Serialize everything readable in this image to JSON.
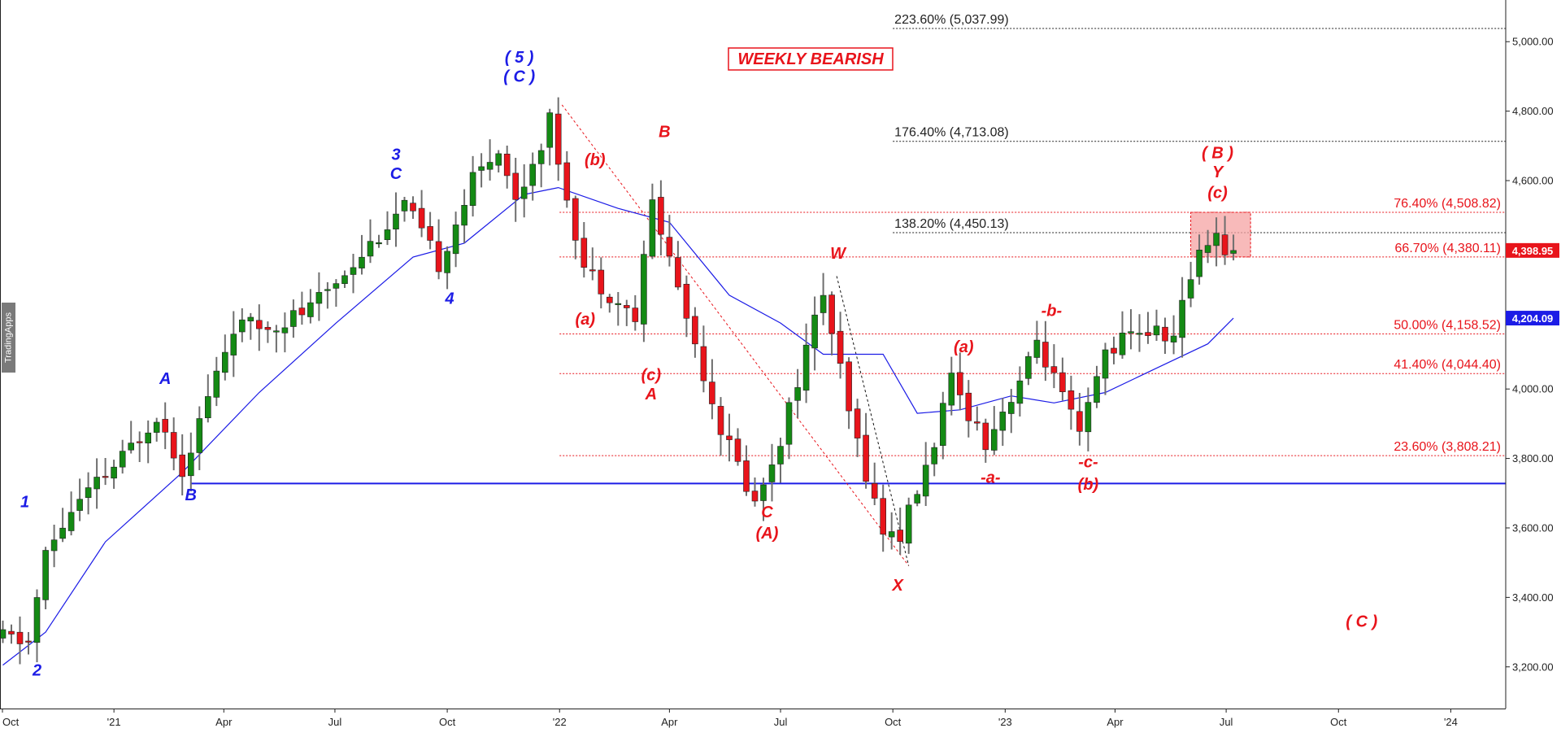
{
  "watermark": "TradingApps",
  "chart_data": {
    "type": "candlestick",
    "title": "WEEKLY BEARISH",
    "ylim": [
      3080,
      5120
    ],
    "y_ticks": [
      3200,
      3400,
      3600,
      3800,
      4000,
      4200,
      4400,
      4600,
      4800,
      5000
    ],
    "y_tick_labels": [
      "3,200.00",
      "3,400.00",
      "3,600.00",
      "3,800.00",
      "4,000.00",
      "4,200.00",
      "4,400.00",
      "4,600.00",
      "4,800.00",
      "5,000.00"
    ],
    "x_start": "2020-10-01",
    "x_end": "2024-02-15",
    "x_ticks": [
      {
        "date": "2020-10-01",
        "label": "Oct"
      },
      {
        "date": "2021-01-01",
        "label": "'21"
      },
      {
        "date": "2021-04-01",
        "label": "Apr"
      },
      {
        "date": "2021-07-01",
        "label": "Jul"
      },
      {
        "date": "2021-10-01",
        "label": "Oct"
      },
      {
        "date": "2022-01-01",
        "label": "'22"
      },
      {
        "date": "2022-04-01",
        "label": "Apr"
      },
      {
        "date": "2022-07-01",
        "label": "Jul"
      },
      {
        "date": "2022-10-01",
        "label": "Oct"
      },
      {
        "date": "2023-01-01",
        "label": "'23"
      },
      {
        "date": "2023-04-01",
        "label": "Apr"
      },
      {
        "date": "2023-07-01",
        "label": "Jul"
      },
      {
        "date": "2023-10-01",
        "label": "Oct"
      },
      {
        "date": "2024-01-01",
        "label": "'24"
      }
    ],
    "price_path": [
      [
        "2020-10-02",
        3290
      ],
      [
        "2020-10-30",
        3270
      ],
      [
        "2020-11-13",
        3520
      ],
      [
        "2020-12-04",
        3650
      ],
      [
        "2021-01-15",
        3800
      ],
      [
        "2021-02-12",
        3930
      ],
      [
        "2021-03-05",
        3770
      ],
      [
        "2021-04-16",
        4180
      ],
      [
        "2021-05-14",
        4180
      ],
      [
        "2021-06-18",
        4230
      ],
      [
        "2021-07-16",
        4340
      ],
      [
        "2021-08-27",
        4500
      ],
      [
        "2021-09-03",
        4530
      ],
      [
        "2021-10-01",
        4360
      ],
      [
        "2021-10-29",
        4600
      ],
      [
        "2021-11-19",
        4700
      ],
      [
        "2021-12-03",
        4540
      ],
      [
        "2021-12-31",
        4770
      ],
      [
        "2022-01-28",
        4350
      ],
      [
        "2022-03-11",
        4200
      ],
      [
        "2022-03-25",
        4540
      ],
      [
        "2022-04-29",
        4130
      ],
      [
        "2022-05-20",
        3890
      ],
      [
        "2022-06-17",
        3670
      ],
      [
        "2022-07-08",
        3860
      ],
      [
        "2022-08-12",
        4280
      ],
      [
        "2022-09-02",
        3930
      ],
      [
        "2022-09-30",
        3590
      ],
      [
        "2022-10-14",
        3580
      ],
      [
        "2022-11-04",
        3770
      ],
      [
        "2022-11-25",
        4020
      ],
      [
        "2022-12-23",
        3850
      ],
      [
        "2023-01-27",
        4070
      ],
      [
        "2023-02-03",
        4140
      ],
      [
        "2023-03-10",
        3860
      ],
      [
        "2023-03-31",
        4110
      ],
      [
        "2023-04-28",
        4170
      ],
      [
        "2023-05-26",
        4150
      ],
      [
        "2023-06-16",
        4410
      ],
      [
        "2023-06-30",
        4450
      ],
      [
        "2023-07-07",
        4398
      ]
    ],
    "candle_count": 145,
    "moving_average": [
      [
        "2020-10-02",
        3205
      ],
      [
        "2020-11-06",
        3300
      ],
      [
        "2020-12-25",
        3560
      ],
      [
        "2021-02-26",
        3760
      ],
      [
        "2021-04-30",
        3990
      ],
      [
        "2021-07-02",
        4190
      ],
      [
        "2021-09-03",
        4380
      ],
      [
        "2021-10-15",
        4420
      ],
      [
        "2021-12-03",
        4560
      ],
      [
        "2021-12-31",
        4580
      ],
      [
        "2022-02-18",
        4520
      ],
      [
        "2022-04-01",
        4480
      ],
      [
        "2022-05-20",
        4270
      ],
      [
        "2022-07-01",
        4190
      ],
      [
        "2022-08-05",
        4100
      ],
      [
        "2022-09-23",
        4100
      ],
      [
        "2022-10-21",
        3930
      ],
      [
        "2022-11-25",
        3940
      ],
      [
        "2023-01-06",
        3980
      ],
      [
        "2023-02-10",
        3960
      ],
      [
        "2023-03-24",
        3990
      ],
      [
        "2023-05-05",
        4060
      ],
      [
        "2023-06-16",
        4130
      ],
      [
        "2023-07-07",
        4204
      ]
    ],
    "support_line": {
      "value": 3728,
      "from": "2021-03-05",
      "color": "#1c1ce6"
    },
    "fib_lines": [
      {
        "value": 5037.99,
        "label": "223.60% (5,037.99)",
        "color": "#222222",
        "side": "left",
        "from": "2022-10-01"
      },
      {
        "value": 4713.08,
        "label": "176.40% (4,713.08)",
        "color": "#222222",
        "side": "left",
        "from": "2022-10-01"
      },
      {
        "value": 4450.13,
        "label": "138.20% (4,450.13)",
        "color": "#222222",
        "side": "left",
        "from": "2022-10-01"
      },
      {
        "value": 4508.82,
        "label": "76.40% (4,508.82)",
        "color": "#e8141b",
        "side": "right",
        "from": "2022-01-01"
      },
      {
        "value": 4380.11,
        "label": "66.70% (4,380.11)",
        "color": "#e8141b",
        "side": "right",
        "from": "2022-01-01"
      },
      {
        "value": 4158.52,
        "label": "50.00% (4,158.52)",
        "color": "#e8141b",
        "side": "right",
        "from": "2022-01-01"
      },
      {
        "value": 4044.4,
        "label": "41.40% (4,044.40)",
        "color": "#e8141b",
        "side": "right",
        "from": "2022-01-01"
      },
      {
        "value": 3808.21,
        "label": "23.60% (3,808.21)",
        "color": "#e8141b",
        "side": "right",
        "from": "2022-01-01"
      }
    ],
    "target_box": {
      "from": "2023-06-02",
      "to": "2023-07-21",
      "top": 4508.82,
      "bottom": 4380.11,
      "color": "#f5a3a3"
    },
    "trend_lines": [
      {
        "from": [
          "2022-01-03",
          4818
        ],
        "to": [
          "2022-10-14",
          3491
        ],
        "color": "#e8141b"
      },
      {
        "from": [
          "2022-08-16",
          4325
        ],
        "to": [
          "2022-10-14",
          3491
        ],
        "color": "#111111"
      }
    ],
    "price_tags": [
      {
        "value": 4398.95,
        "label": "4,398.95",
        "color": "#e8141b"
      },
      {
        "value": 4204.09,
        "label": "4,204.09",
        "color": "#1c1ce6"
      }
    ],
    "wave_labels": [
      {
        "text": "1",
        "date": "2020-10-20",
        "price": 3660,
        "color": "#1c1ce6"
      },
      {
        "text": "2",
        "date": "2020-10-30",
        "price": 3175,
        "color": "#1c1ce6"
      },
      {
        "text": "A",
        "date": "2021-02-12",
        "price": 4015,
        "color": "#1c1ce6"
      },
      {
        "text": "B",
        "date": "2021-03-05",
        "price": 3680,
        "color": "#1c1ce6"
      },
      {
        "text": "3",
        "date": "2021-08-20",
        "price": 4660,
        "color": "#1c1ce6"
      },
      {
        "text": "C",
        "date": "2021-08-20",
        "price": 4605,
        "color": "#1c1ce6"
      },
      {
        "text": "4",
        "date": "2021-10-03",
        "price": 4245,
        "color": "#1c1ce6"
      },
      {
        "text": "( 5 )",
        "date": "2021-11-29",
        "price": 4940,
        "color": "#1c1ce6"
      },
      {
        "text": "( C )",
        "date": "2021-11-29",
        "price": 4885,
        "color": "#1c1ce6"
      },
      {
        "text": "(b)",
        "date": "2022-01-30",
        "price": 4645,
        "color": "#e8141b"
      },
      {
        "text": "B",
        "date": "2022-03-28",
        "price": 4725,
        "color": "#e8141b"
      },
      {
        "text": "(a)",
        "date": "2022-01-22",
        "price": 4185,
        "color": "#e8141b"
      },
      {
        "text": "(c)",
        "date": "2022-03-17",
        "price": 4025,
        "color": "#e8141b"
      },
      {
        "text": "A",
        "date": "2022-03-17",
        "price": 3970,
        "color": "#e8141b"
      },
      {
        "text": "W",
        "date": "2022-08-17",
        "price": 4375,
        "color": "#e8141b"
      },
      {
        "text": "C",
        "date": "2022-06-20",
        "price": 3630,
        "color": "#e8141b"
      },
      {
        "text": "(A)",
        "date": "2022-06-20",
        "price": 3570,
        "color": "#e8141b"
      },
      {
        "text": "X",
        "date": "2022-10-05",
        "price": 3420,
        "color": "#e8141b"
      },
      {
        "text": "(a)",
        "date": "2022-11-28",
        "price": 4106,
        "color": "#e8141b"
      },
      {
        "text": "-a-",
        "date": "2022-12-20",
        "price": 3730,
        "color": "#e8141b"
      },
      {
        "text": "-b-",
        "date": "2023-02-08",
        "price": 4210,
        "color": "#e8141b"
      },
      {
        "text": "-c-",
        "date": "2023-03-10",
        "price": 3775,
        "color": "#e8141b"
      },
      {
        "text": "(b)",
        "date": "2023-03-10",
        "price": 3710,
        "color": "#e8141b"
      },
      {
        "text": "( B )",
        "date": "2023-06-24",
        "price": 4665,
        "color": "#e8141b"
      },
      {
        "text": "Y",
        "date": "2023-06-24",
        "price": 4610,
        "color": "#e8141b"
      },
      {
        "text": "(c)",
        "date": "2023-06-24",
        "price": 4550,
        "color": "#e8141b"
      },
      {
        "text": "( C )",
        "date": "2023-10-20",
        "price": 3315,
        "color": "#e8141b"
      }
    ],
    "colors": {
      "up": "#148a14",
      "down": "#e8141b",
      "wick": "#6e6e6e",
      "ma": "#1c1ce6",
      "axis": "#222222",
      "background": "#ffffff"
    }
  }
}
